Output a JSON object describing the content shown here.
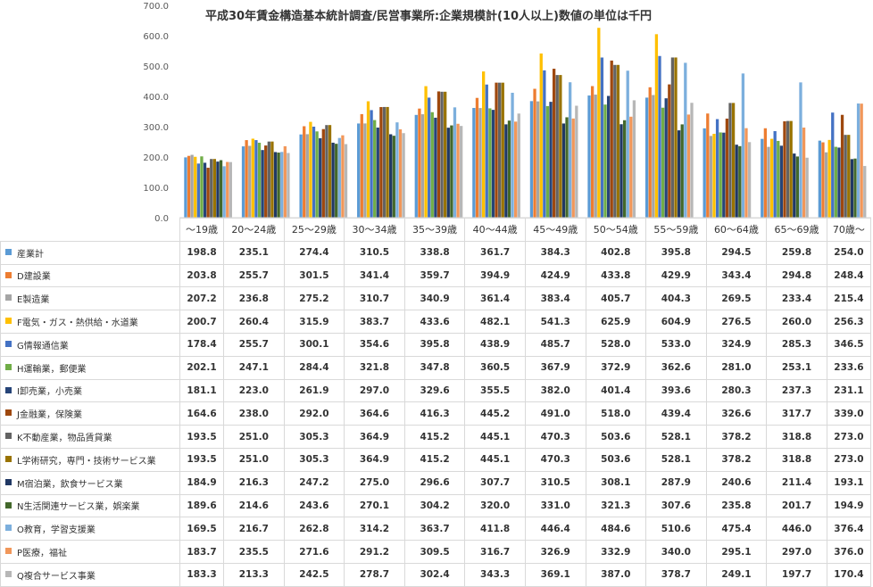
{
  "chart_data": {
    "type": "bar",
    "title": "平成30年賃金構造基本統計調査/民営事業所:企業規模計(10人以上)数値の単位は千円",
    "ylim": [
      0,
      700
    ],
    "yticks": [
      "0.0",
      "100.0",
      "200.0",
      "300.0",
      "400.0",
      "500.0",
      "600.0",
      "700.0"
    ],
    "categories": [
      "～19歳",
      "20～24歳",
      "25～29歳",
      "30～34歳",
      "35～39歳",
      "40～44歳",
      "45～49歳",
      "50～54歳",
      "55～59歳",
      "60～64歳",
      "65～69歳",
      "70歳～"
    ],
    "legend_placement": "table-below",
    "grid": false,
    "series": [
      {
        "name": "産業計",
        "color": "#5B9BD5",
        "values": [
          198.8,
          235.1,
          274.4,
          310.5,
          338.8,
          361.7,
          384.3,
          402.8,
          395.8,
          294.5,
          259.8,
          254.0
        ]
      },
      {
        "name": "D建設業",
        "color": "#ED7D31",
        "values": [
          203.8,
          255.7,
          301.5,
          341.4,
          359.7,
          394.9,
          424.9,
          433.8,
          429.9,
          343.4,
          294.8,
          248.4
        ]
      },
      {
        "name": "E製造業",
        "color": "#A5A5A5",
        "values": [
          207.2,
          236.8,
          275.2,
          310.7,
          340.9,
          361.4,
          383.4,
          405.7,
          404.3,
          269.5,
          233.4,
          215.4
        ]
      },
      {
        "name": "F電気・ガス・熱供給・水道業",
        "color": "#FFC000",
        "values": [
          200.7,
          260.4,
          315.9,
          383.7,
          433.6,
          482.1,
          541.3,
          625.9,
          604.9,
          276.5,
          260.0,
          256.3
        ]
      },
      {
        "name": "G情報通信業",
        "color": "#4472C4",
        "values": [
          178.4,
          255.7,
          300.1,
          354.6,
          395.8,
          438.9,
          485.7,
          528.0,
          533.0,
          324.9,
          285.3,
          346.5
        ]
      },
      {
        "name": "H運輸業，郵便業",
        "color": "#70AD47",
        "values": [
          202.1,
          247.1,
          284.4,
          321.8,
          347.8,
          360.5,
          367.9,
          372.9,
          362.6,
          281.0,
          253.1,
          233.6
        ]
      },
      {
        "name": "I卸売業，小売業",
        "color": "#264478",
        "values": [
          181.1,
          223.0,
          261.9,
          297.0,
          329.6,
          355.5,
          382.0,
          401.4,
          393.6,
          280.3,
          237.3,
          231.1
        ]
      },
      {
        "name": "J金融業，保険業",
        "color": "#9E480E",
        "values": [
          164.6,
          238.0,
          292.0,
          364.6,
          416.3,
          445.2,
          491.0,
          518.0,
          439.4,
          326.6,
          317.7,
          339.0
        ]
      },
      {
        "name": "K不動産業，物品賃貸業",
        "color": "#636363",
        "values": [
          193.5,
          251.0,
          305.3,
          364.9,
          415.2,
          445.1,
          470.3,
          503.6,
          528.1,
          378.2,
          318.8,
          273.0
        ]
      },
      {
        "name": "L学術研究，専門・技術サービス業",
        "color": "#997300",
        "values": [
          193.5,
          251.0,
          305.3,
          364.9,
          415.2,
          445.1,
          470.3,
          503.6,
          528.1,
          378.2,
          318.8,
          273.0
        ]
      },
      {
        "name": "M宿泊業，飲食サービス業",
        "color": "#203864",
        "values": [
          184.9,
          216.3,
          247.2,
          275.0,
          296.6,
          307.7,
          310.5,
          308.1,
          287.9,
          240.6,
          211.4,
          193.1
        ]
      },
      {
        "name": "N生活関連サービス業，娯楽業",
        "color": "#43682B",
        "values": [
          189.6,
          214.6,
          243.6,
          270.1,
          304.2,
          320.0,
          331.0,
          321.3,
          307.6,
          235.8,
          201.7,
          194.9
        ]
      },
      {
        "name": "O教育，学習支援業",
        "color": "#7CAFDD",
        "values": [
          169.5,
          216.7,
          262.8,
          314.2,
          363.7,
          411.8,
          446.4,
          484.6,
          510.6,
          475.4,
          446.0,
          376.4
        ]
      },
      {
        "name": "P医療，福祉",
        "color": "#F1975A",
        "values": [
          183.7,
          235.5,
          271.6,
          291.2,
          309.5,
          316.7,
          326.9,
          332.9,
          340.0,
          295.1,
          297.0,
          376.0
        ]
      },
      {
        "name": "Q複合サービス事業",
        "color": "#B7B7B7",
        "values": [
          183.3,
          213.3,
          242.5,
          278.7,
          302.4,
          343.3,
          369.1,
          387.0,
          378.7,
          249.1,
          197.7,
          170.4
        ]
      }
    ]
  }
}
